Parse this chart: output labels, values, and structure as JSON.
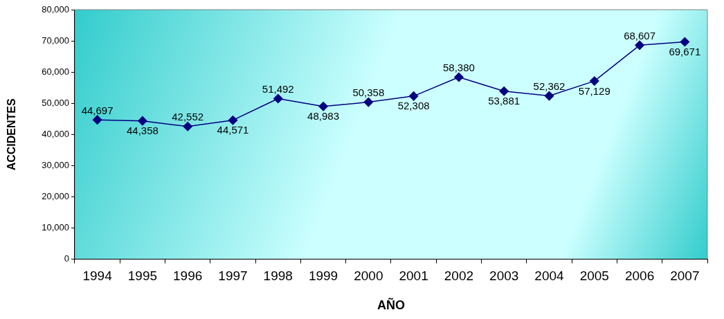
{
  "chart_data": {
    "type": "line",
    "xlabel": "AÑO",
    "ylabel": "ACCIDENTES",
    "categories": [
      "1994",
      "1995",
      "1996",
      "1997",
      "1998",
      "1999",
      "2000",
      "2001",
      "2002",
      "2003",
      "2004",
      "2005",
      "2006",
      "2007"
    ],
    "series": [
      {
        "color": "#000080",
        "values": [
          44697,
          44358,
          42552,
          44571,
          51492,
          48983,
          50358,
          52308,
          58380,
          53881,
          52362,
          57129,
          68607,
          69671
        ],
        "value_labels": [
          "44,697",
          "44,358",
          "42,552",
          "44,571",
          "51,492",
          "48,983",
          "50,358",
          "52,308",
          "58,380",
          "53,881",
          "52,362",
          "57,129",
          "68,607",
          "69,671"
        ]
      }
    ],
    "ylim": [
      0,
      80000
    ],
    "yticks": [
      0,
      {
        "value": 10000,
        "label": "10,000"
      },
      {
        "value": 20000,
        "label": "20,000"
      },
      {
        "value": 30000,
        "label": "30,000"
      },
      {
        "value": 40000,
        "label": "40,000"
      },
      {
        "value": 50000,
        "label": "50,000"
      },
      {
        "value": 60000,
        "label": "60,000"
      },
      {
        "value": 70000,
        "label": "70,000"
      },
      {
        "value": 80000,
        "label": "80,000"
      }
    ],
    "grid": false,
    "legend": false,
    "marker": "diamond",
    "line_style": "solid"
  }
}
